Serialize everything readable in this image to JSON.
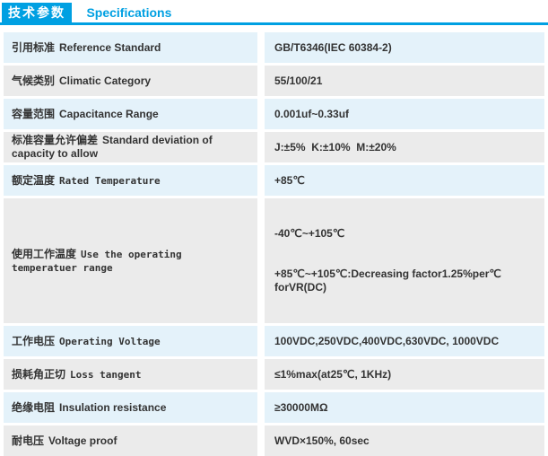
{
  "header": {
    "title_zh": "技术参数",
    "title_en": "Specifications",
    "accent_color": "#00A0E2"
  },
  "table": {
    "row_colors": {
      "odd": "#E4F2FA",
      "even": "#EBEBEB"
    },
    "rows": [
      {
        "label_zh": "引用标准",
        "label_en": "Reference Standard",
        "value": "GB/T6346(IEC 60384-2)"
      },
      {
        "label_zh": "气候类别",
        "label_en": "Climatic Category",
        "value": "55/100/21"
      },
      {
        "label_zh": "容量范围",
        "label_en": "Capacitance Range",
        "value": "0.001uf~0.33uf"
      },
      {
        "label_zh": "标准容量允许偏差",
        "label_en": "Standard deviation of capacity to allow",
        "value": "J:±5%  K:±10%  M:±20%"
      },
      {
        "label_zh": "额定温度",
        "label_en": "Rated Temperature",
        "value": "+85℃"
      },
      {
        "label_zh": "使用工作温度",
        "label_en": "Use the operating temperatuer range",
        "value": "-40℃~+105℃",
        "value_line2": "+85℃~+105℃:Decreasing factor1.25%per℃  forVR(DC)"
      },
      {
        "label_zh": "工作电压",
        "label_en": "Operating Voltage",
        "value": "100VDC,250VDC,400VDC,630VDC, 1000VDC"
      },
      {
        "label_zh": "损耗角正切",
        "label_en": "Loss tangent",
        "value": "≤1%max(at25℃, 1KHz)"
      },
      {
        "label_zh": "绝缘电阻",
        "label_en": "Insulation resistance",
        "value": "≥30000MΩ"
      },
      {
        "label_zh": "耐电压",
        "label_en": "Voltage proof",
        "value": "WVD×150%, 60sec"
      }
    ]
  }
}
